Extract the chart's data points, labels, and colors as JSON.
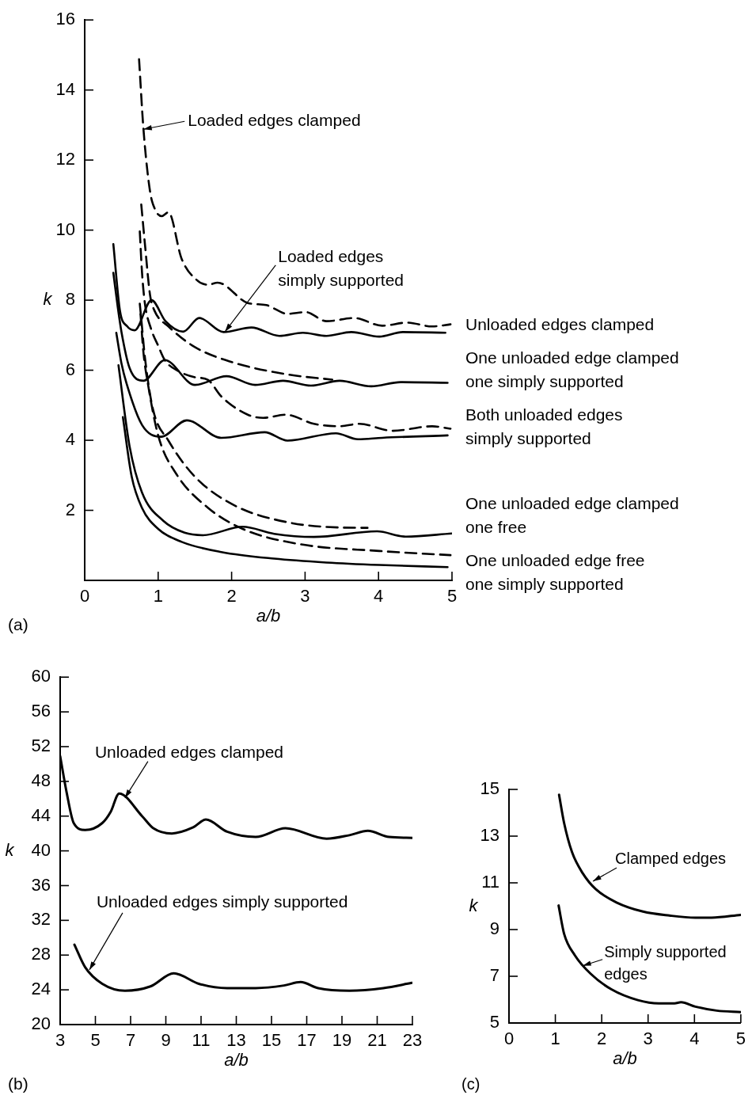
{
  "chart_data": [
    {
      "type": "line",
      "xlabel": "a/b",
      "ylabel": "k",
      "xlim": [
        0,
        5
      ],
      "xticks": [
        0,
        1,
        2,
        3,
        4,
        5
      ],
      "ylim": [
        0,
        16
      ],
      "yticks": [
        2,
        4,
        6,
        8,
        10,
        12,
        14,
        16
      ],
      "legend": false,
      "marker": "none",
      "annotations": [
        "(a)",
        {
          "text": "Loaded edges clamped",
          "x": 0.8,
          "y": 12.88
        },
        {
          "text": "Loaded edges\nsimply supported",
          "x": 1.91,
          "y": 7.1
        },
        "Unloaded edges clamped",
        "One unloaded edge clamped\none simply supported",
        "Both unloaded edges\nsimply supported",
        "One unloaded edge clamped\none free",
        "One unloaded edge free\none simply supported"
      ],
      "series": [
        {
          "color": "#000000",
          "line_style": "solid",
          "x": [
            0.39,
            0.48,
            0.58,
            0.68,
            0.91,
            1.1,
            1.34,
            1.56,
            1.89,
            2.27,
            2.65,
            2.97,
            3.29,
            3.63,
            4.01,
            4.33,
            4.91
          ],
          "values": [
            9.6,
            7.7,
            7.25,
            7.14,
            8.0,
            7.4,
            7.1,
            7.49,
            7.09,
            7.22,
            6.98,
            7.07,
            6.98,
            7.09,
            6.96,
            7.09,
            7.07
          ]
        },
        {
          "color": "#000000",
          "line_style": "solid",
          "x": [
            0.39,
            0.45,
            0.5,
            0.61,
            0.8,
            1.09,
            1.5,
            1.93,
            2.32,
            2.7,
            3.08,
            3.47,
            3.9,
            4.3,
            4.94
          ],
          "values": [
            8.78,
            7.8,
            7.1,
            6.07,
            5.7,
            6.29,
            5.58,
            5.83,
            5.58,
            5.7,
            5.56,
            5.7,
            5.54,
            5.66,
            5.64
          ]
        },
        {
          "color": "#000000",
          "line_style": "solid",
          "x": [
            0.43,
            0.5,
            0.57,
            0.78,
            1.04,
            1.39,
            1.86,
            2.45,
            2.76,
            3.42,
            3.72,
            4.05,
            4.94
          ],
          "values": [
            7.07,
            6.2,
            5.62,
            4.44,
            4.1,
            4.57,
            4.07,
            4.23,
            3.99,
            4.2,
            4.03,
            4.07,
            4.14
          ]
        },
        {
          "color": "#000000",
          "line_style": "solid",
          "x": [
            0.46,
            0.61,
            0.78,
            1.07,
            1.36,
            1.61,
            2.15,
            2.58,
            3.12,
            3.98,
            4.37,
            5.0
          ],
          "values": [
            6.14,
            3.84,
            2.51,
            1.7,
            1.36,
            1.29,
            1.53,
            1.33,
            1.24,
            1.4,
            1.25,
            1.34
          ]
        },
        {
          "color": "#000000",
          "line_style": "solid",
          "x": [
            0.52,
            0.64,
            0.78,
            1.0,
            1.32,
            1.86,
            2.58,
            3.29,
            4.01,
            4.94
          ],
          "values": [
            4.66,
            2.96,
            2.07,
            1.47,
            1.1,
            0.81,
            0.62,
            0.51,
            0.44,
            0.38
          ]
        },
        {
          "color": "#000000",
          "line_style": "dashed",
          "x": [
            0.74,
            0.8,
            0.89,
            0.96,
            1.05,
            1.14,
            1.32,
            1.54,
            1.68,
            1.81,
            2.22,
            2.47,
            2.76,
            3.01,
            3.29,
            3.67,
            4.05,
            4.39,
            4.73,
            4.98
          ],
          "values": [
            14.88,
            12.88,
            11.1,
            10.58,
            10.4,
            10.51,
            9.18,
            8.55,
            8.44,
            8.5,
            7.92,
            7.86,
            7.61,
            7.66,
            7.4,
            7.49,
            7.27,
            7.36,
            7.25,
            7.31
          ]
        },
        {
          "color": "#000000",
          "line_style": "dashed",
          "x": [
            0.77,
            0.82,
            0.89,
            0.95,
            1.14,
            1.5,
            2.04,
            2.76,
            3.37
          ],
          "values": [
            10.73,
            9.6,
            8.14,
            7.7,
            7.25,
            6.66,
            6.21,
            5.88,
            5.73
          ]
        },
        {
          "color": "#000000",
          "line_style": "dashed",
          "x": [
            0.75,
            0.78,
            0.82,
            0.9,
            1.0,
            1.09,
            1.3,
            1.5,
            1.68,
            1.86,
            2.22,
            2.43,
            2.74,
            3.12,
            3.47,
            3.74,
            4.19,
            4.73,
            4.98
          ],
          "values": [
            9.96,
            8.8,
            7.9,
            7.2,
            6.7,
            6.29,
            5.95,
            5.8,
            5.72,
            5.25,
            4.73,
            4.64,
            4.73,
            4.47,
            4.4,
            4.47,
            4.27,
            4.4,
            4.33
          ]
        },
        {
          "color": "#000000",
          "line_style": "dashed",
          "x": [
            0.75,
            0.77,
            0.82,
            0.93,
            1.14,
            1.5,
            2.04,
            2.76,
            3.47,
            3.85
          ],
          "values": [
            7.9,
            7.47,
            6.36,
            4.88,
            3.99,
            2.96,
            2.14,
            1.66,
            1.51,
            1.5
          ]
        },
        {
          "color": "#000000",
          "line_style": "dashed",
          "x": [
            0.76,
            0.8,
            0.86,
            1.0,
            1.25,
            1.68,
            2.15,
            2.94,
            4.01,
            4.98
          ],
          "values": [
            7.6,
            6.5,
            5.62,
            4.14,
            3.03,
            2.07,
            1.47,
            1.03,
            0.84,
            0.72
          ]
        }
      ]
    },
    {
      "type": "line",
      "xlabel": "a/b",
      "ylabel": "k",
      "xlim": [
        3,
        23
      ],
      "xticks": [
        3,
        5,
        7,
        9,
        11,
        13,
        15,
        17,
        19,
        21,
        23
      ],
      "ylim": [
        20,
        60
      ],
      "yticks": [
        20,
        24,
        28,
        32,
        36,
        40,
        44,
        48,
        52,
        56,
        60
      ],
      "legend": false,
      "marker": "none",
      "annotations": [
        "(b)",
        {
          "text": "Unloaded edges clamped",
          "x": 6.68,
          "y": 46.1
        },
        {
          "text": "Unloaded edges simply supported",
          "x": 4.66,
          "y": 26.3
        }
      ],
      "series": [
        {
          "color": "#000000",
          "line_style": "solid",
          "x": [
            3.0,
            3.37,
            3.77,
            4.42,
            5.39,
            5.87,
            6.35,
            7.65,
            8.29,
            9.34,
            10.55,
            11.27,
            12.48,
            14.1,
            15.79,
            18.13,
            19.42,
            20.47,
            21.68,
            23.0
          ],
          "values": [
            50.9,
            46.7,
            43.2,
            42.4,
            43.2,
            44.5,
            46.6,
            44.0,
            42.6,
            42.0,
            42.7,
            43.6,
            42.2,
            41.6,
            42.6,
            41.4,
            41.8,
            42.3,
            41.6,
            41.5
          ]
        },
        {
          "color": "#000000",
          "line_style": "solid",
          "x": [
            3.81,
            4.42,
            5.39,
            6.68,
            8.13,
            9.45,
            10.87,
            12.48,
            14.1,
            15.71,
            16.65,
            17.65,
            19.42,
            21.35,
            22.97
          ],
          "values": [
            29.2,
            26.6,
            24.7,
            23.9,
            24.4,
            25.9,
            24.7,
            24.2,
            24.2,
            24.5,
            24.9,
            24.2,
            23.9,
            24.2,
            24.8
          ]
        }
      ]
    },
    {
      "type": "line",
      "xlabel": "a/b",
      "ylabel": "k",
      "xlim": [
        0,
        5
      ],
      "xticks": [
        0,
        1,
        2,
        3,
        4,
        5
      ],
      "ylim": [
        5,
        15
      ],
      "yticks": [
        5,
        7,
        9,
        11,
        13,
        15
      ],
      "legend": false,
      "marker": "none",
      "annotations": [
        "(c)",
        {
          "text": "Clamped edges",
          "x": 1.81,
          "y": 11.07
        },
        {
          "text": "Simply supported\nedges",
          "x": 1.59,
          "y": 7.45
        }
      ],
      "series": [
        {
          "color": "#000000",
          "line_style": "solid",
          "x": [
            1.08,
            1.19,
            1.36,
            1.59,
            1.87,
            2.32,
            2.89,
            3.46,
            4.02,
            4.37,
            5.0
          ],
          "values": [
            14.77,
            13.55,
            12.31,
            11.41,
            10.73,
            10.16,
            9.77,
            9.6,
            9.51,
            9.51,
            9.63
          ]
        },
        {
          "color": "#000000",
          "line_style": "solid",
          "x": [
            1.07,
            1.19,
            1.42,
            1.76,
            2.21,
            2.78,
            3.23,
            3.57,
            3.71,
            4.02,
            4.48,
            5.0
          ],
          "values": [
            10.03,
            8.81,
            7.9,
            7.11,
            6.44,
            5.98,
            5.84,
            5.84,
            5.89,
            5.7,
            5.53,
            5.47
          ]
        }
      ]
    }
  ]
}
